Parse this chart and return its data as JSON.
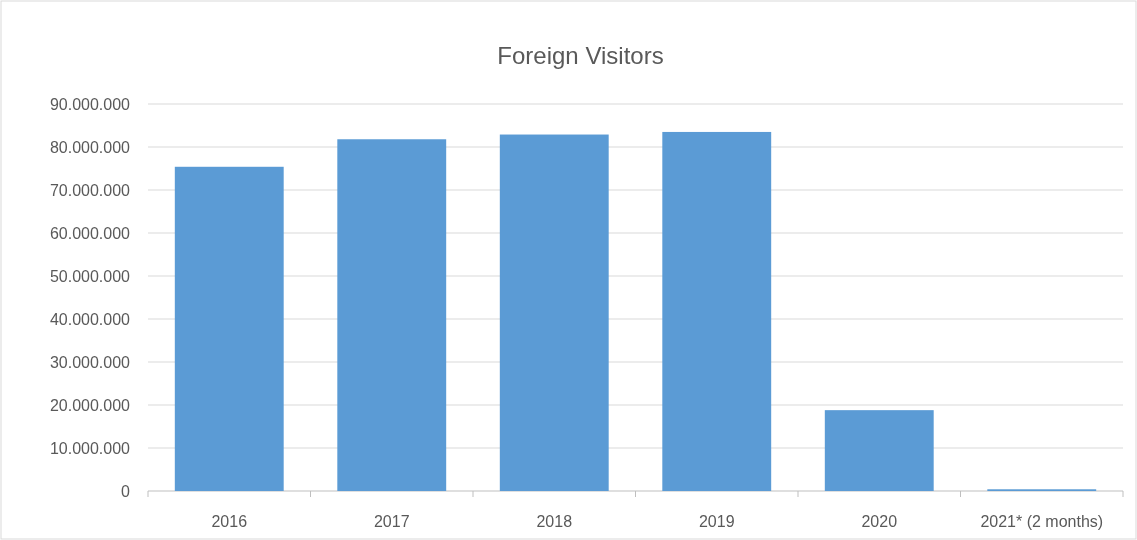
{
  "chart_data": {
    "type": "bar",
    "title": "Foreign Visitors",
    "categories": [
      "2016",
      "2017",
      "2018",
      "2019",
      "2020",
      "2021* (2 months)"
    ],
    "values": [
      75400000,
      81800000,
      82900000,
      83500000,
      18800000,
      400000
    ],
    "color": "#5b9bd5",
    "ylim": [
      0,
      90000000
    ],
    "yticks": [
      {
        "value": 0,
        "label": "0"
      },
      {
        "value": 10000000,
        "label": "10.000.000"
      },
      {
        "value": 20000000,
        "label": "20.000.000"
      },
      {
        "value": 30000000,
        "label": "30.000.000"
      },
      {
        "value": 40000000,
        "label": "40.000.000"
      },
      {
        "value": 50000000,
        "label": "50.000.000"
      },
      {
        "value": 60000000,
        "label": "60.000.000"
      },
      {
        "value": 70000000,
        "label": "70.000.000"
      },
      {
        "value": 80000000,
        "label": "80.000.000"
      },
      {
        "value": 90000000,
        "label": "90.000.000"
      }
    ],
    "grid": "y"
  }
}
